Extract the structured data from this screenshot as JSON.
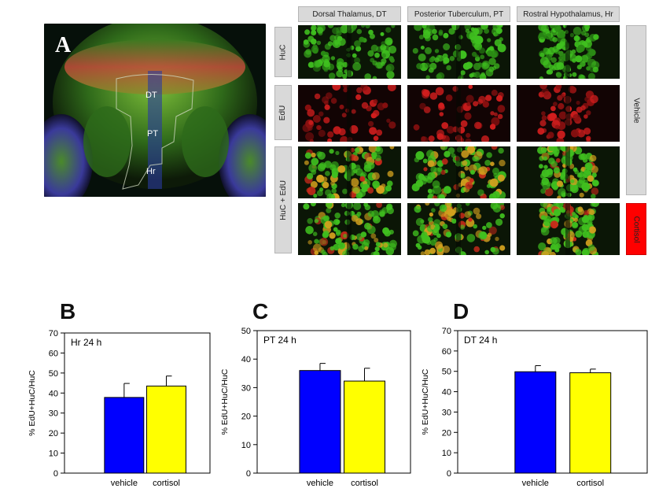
{
  "panel_a": {
    "letter": "A",
    "regions": [
      "DT",
      "PT",
      "Hr"
    ],
    "column_headers": [
      "Dorsal Thalamus, DT",
      "Posterior Tuberculum, PT",
      "Rostral Hypothalamus, Hr"
    ],
    "row_labels": [
      "HuC",
      "EdU",
      "HuC + EdU"
    ],
    "conditions": [
      "Vehicle",
      "Cortisol"
    ],
    "colors": {
      "huc": "#3fbf1f",
      "edu": "#d21e1e",
      "vehicle_label": "#d9d9d9",
      "cortisol_label": "#ff0000"
    }
  },
  "chart_data": [
    {
      "panel_letter": "B",
      "type": "bar",
      "title": "Hr 24 h",
      "xlabel": "",
      "ylabel": "% EdU+HuC/HuC",
      "categories": [
        "vehicle",
        "cortisol"
      ],
      "values": [
        37.8,
        43.5
      ],
      "errors": [
        7.0,
        5.0
      ],
      "colors": [
        "#0000ff",
        "#ffff00"
      ],
      "ylim": [
        0,
        70
      ],
      "yticks": [
        0,
        10,
        20,
        30,
        40,
        50,
        60,
        70
      ]
    },
    {
      "panel_letter": "C",
      "type": "bar",
      "title": "PT 24 h",
      "xlabel": "",
      "ylabel": "% EdU+HuC/HuC",
      "categories": [
        "vehicle",
        "cortisol"
      ],
      "values": [
        36.0,
        32.3
      ],
      "errors": [
        2.5,
        4.5
      ],
      "colors": [
        "#0000ff",
        "#ffff00"
      ],
      "ylim": [
        0,
        50
      ],
      "yticks": [
        0,
        10,
        20,
        30,
        40,
        50
      ]
    },
    {
      "panel_letter": "D",
      "type": "bar",
      "title": "DT 24 h",
      "xlabel": "",
      "ylabel": "% EdU+HuC/HuC",
      "categories": [
        "vehicle",
        "cortisol"
      ],
      "values": [
        49.8,
        49.3
      ],
      "errors": [
        3.0,
        1.8
      ],
      "colors": [
        "#0000ff",
        "#ffff00"
      ],
      "ylim": [
        0,
        70
      ],
      "yticks": [
        0,
        10,
        20,
        30,
        40,
        50,
        60,
        70
      ]
    }
  ]
}
